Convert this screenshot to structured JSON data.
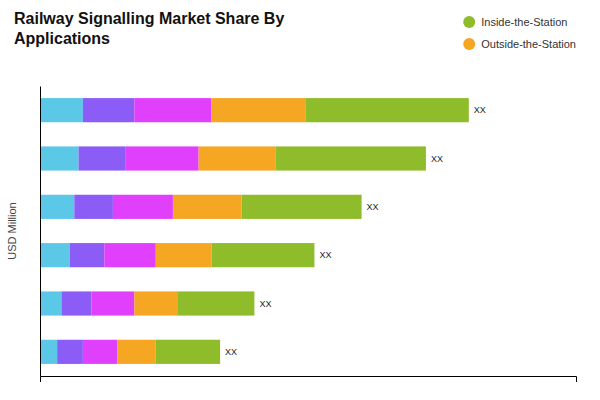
{
  "chart_data": {
    "type": "bar",
    "orientation": "horizontal",
    "stacked": true,
    "title": "Railway Signalling Market Share By\nApplications",
    "ylabel": "USD Million",
    "categories": [
      null,
      null,
      null,
      null,
      null,
      null
    ],
    "series": [
      {
        "color": "#5bc8e8",
        "values": [
          1.0,
          0.9,
          0.8,
          0.7,
          0.5,
          0.4
        ]
      },
      {
        "color": "#8b5cf6",
        "values": [
          1.2,
          1.1,
          0.9,
          0.8,
          0.7,
          0.6
        ]
      },
      {
        "color": "#e040fb",
        "values": [
          1.8,
          1.7,
          1.4,
          1.2,
          1.0,
          0.8
        ]
      },
      {
        "name": "Outside-the-Station",
        "color": "#f5a623",
        "values": [
          2.2,
          1.8,
          1.6,
          1.3,
          1.0,
          0.9
        ]
      },
      {
        "name": "Inside-the-Station",
        "color": "#8fbc2b",
        "values": [
          3.8,
          3.5,
          2.8,
          2.4,
          1.8,
          1.5
        ]
      }
    ],
    "annotations": [
      "XX",
      "XX",
      "XX",
      "XX",
      "XX",
      "XX"
    ],
    "xlim": [
      0,
      12.5
    ],
    "tick_labels": false,
    "grid": false,
    "legend": "upper right"
  }
}
